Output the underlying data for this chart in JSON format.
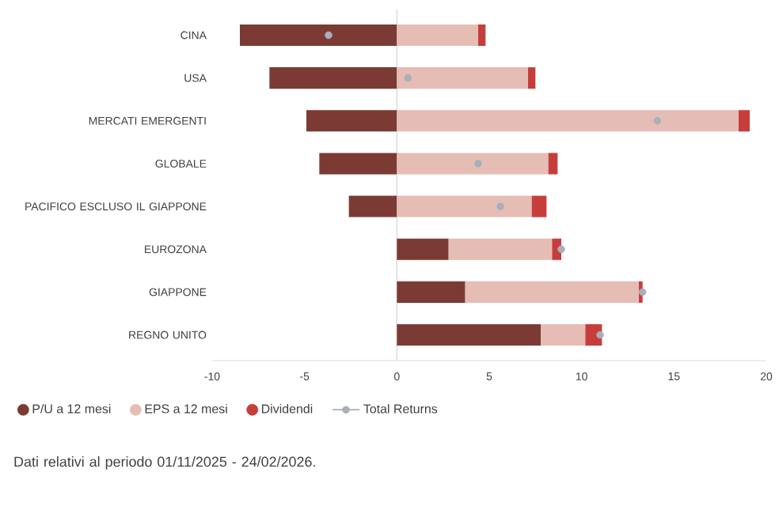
{
  "chart_data": {
    "type": "bar",
    "orientation": "horizontal",
    "stacked": true,
    "categories": [
      "CINA",
      "USA",
      "MERCATI EMERGENTI",
      "GLOBALE",
      "PACIFICO ESCLUSO IL GIAPPONE",
      "EUROZONA",
      "GIAPPONE",
      "REGNO UNITO"
    ],
    "xlim": [
      -10,
      20
    ],
    "xticks": [
      -10,
      -5,
      0,
      5,
      10,
      15,
      20
    ],
    "grid": false,
    "legend": "bottom",
    "ref_lines": [
      {
        "axis": "x",
        "value": 0,
        "color": "#d4d4d4"
      }
    ],
    "series": [
      {
        "name": "P/U a 12 mesi",
        "color": "#7b3b34",
        "values": [
          -8.5,
          -6.9,
          -4.9,
          -4.2,
          -2.6,
          2.8,
          3.7,
          7.8
        ]
      },
      {
        "name": "EPS a 12 mesi",
        "color": "#e5bdb5",
        "values": [
          4.4,
          7.1,
          18.5,
          8.2,
          7.3,
          5.6,
          9.4,
          2.4
        ]
      },
      {
        "name": "Dividendi",
        "color": "#c63e3b",
        "values": [
          0.4,
          0.4,
          0.6,
          0.5,
          0.8,
          0.5,
          0.2,
          0.9
        ]
      },
      {
        "name": "Total Returns",
        "type": "scatter",
        "marker": "circle",
        "color": "#a9aeb9",
        "values": [
          -3.7,
          0.6,
          14.1,
          4.4,
          5.6,
          8.9,
          13.3,
          11.0
        ]
      }
    ],
    "annotations": [
      "Dati relativi al periodo 01/11/2025 - 24/02/2026."
    ]
  }
}
